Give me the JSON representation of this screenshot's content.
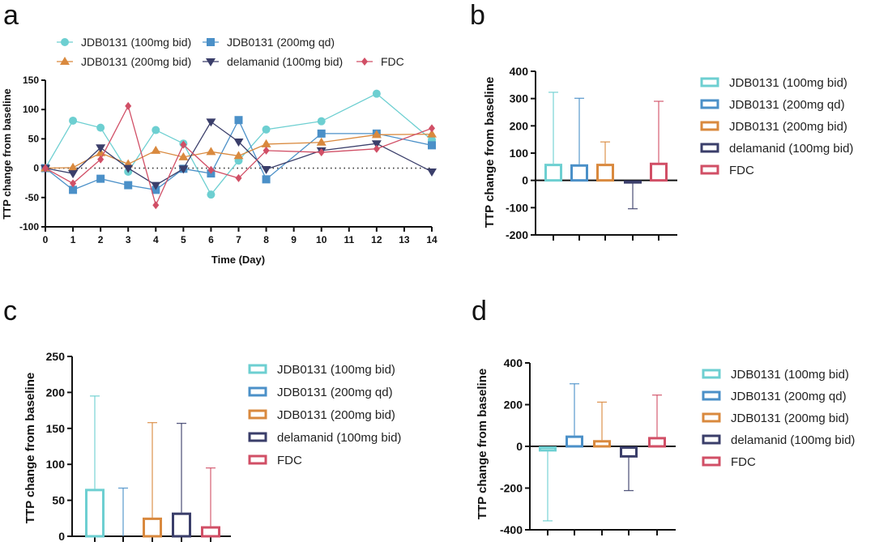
{
  "chart_data": [
    {
      "id": "a",
      "panel_label": "a",
      "type": "line",
      "title": "",
      "xlabel": "Time (Day)",
      "ylabel": "TTP change from baseline",
      "ylim": [
        -100,
        150
      ],
      "yticks": [
        -100,
        -50,
        0,
        50,
        100,
        150
      ],
      "xticks": [
        0,
        1,
        2,
        3,
        4,
        5,
        6,
        7,
        8,
        9,
        10,
        11,
        12,
        13,
        14
      ],
      "xlim": [
        0,
        14
      ],
      "reference_line": {
        "y": 0,
        "style": "dotted"
      },
      "legend_position": "top",
      "series": [
        {
          "name": "JDB0131 (100mg bid)",
          "color": "#6dcfd1",
          "marker": "circle",
          "x": [
            0,
            1,
            2,
            3,
            4,
            5,
            6,
            7,
            8,
            10,
            12,
            14
          ],
          "y": [
            0,
            81,
            69,
            -6,
            65,
            42,
            -45,
            13,
            66,
            80,
            127,
            48
          ]
        },
        {
          "name": "JDB0131 (200mg qd)",
          "color": "#4b90c8",
          "marker": "square",
          "x": [
            0,
            1,
            2,
            3,
            4,
            5,
            6,
            7,
            8,
            10,
            12,
            14
          ],
          "y": [
            0,
            -37,
            -18,
            -29,
            -37,
            -1,
            -9,
            82,
            -19,
            59,
            59,
            39
          ]
        },
        {
          "name": "JDB0131 (200mg bid)",
          "color": "#d9893e",
          "marker": "triangle-up",
          "x": [
            0,
            1,
            2,
            3,
            4,
            5,
            6,
            7,
            8,
            10,
            12,
            14
          ],
          "y": [
            0,
            1,
            26,
            7,
            30,
            19,
            28,
            21,
            41,
            44,
            57,
            58
          ]
        },
        {
          "name": "delamanid (100mg bid)",
          "color": "#3a3e6a",
          "marker": "triangle-down",
          "x": [
            0,
            1,
            2,
            3,
            4,
            5,
            6,
            7,
            8,
            10,
            12,
            14
          ],
          "y": [
            0,
            -9,
            35,
            0,
            -29,
            -1,
            79,
            45,
            -2,
            30,
            42,
            -6
          ]
        },
        {
          "name": "FDC",
          "color": "#d14f66",
          "marker": "diamond",
          "x": [
            0,
            1,
            2,
            3,
            4,
            5,
            6,
            7,
            8,
            10,
            12,
            14
          ],
          "y": [
            0,
            -26,
            15,
            106,
            -63,
            40,
            -3,
            -17,
            30,
            27,
            33,
            68
          ]
        }
      ]
    },
    {
      "id": "b",
      "panel_label": "b",
      "type": "bar",
      "xlabel": "",
      "ylabel": "TTP change from baseline",
      "ylim": [
        -200,
        400
      ],
      "yticks": [
        -200,
        -100,
        0,
        100,
        200,
        300,
        400
      ],
      "legend_position": "right",
      "categories": [
        "JDB0131 (100mg bid)",
        "JDB0131 (200mg qd)",
        "JDB0131 (200mg bid)",
        "delamanid (100mg bid)",
        "FDC"
      ],
      "values": [
        61,
        59,
        61,
        -5,
        65
      ],
      "error_ends": [
        323,
        301,
        141,
        -104,
        290
      ],
      "colors": [
        "#6dcfd1",
        "#4b90c8",
        "#d9893e",
        "#3a3e6a",
        "#d14f66"
      ]
    },
    {
      "id": "c",
      "panel_label": "c",
      "type": "bar",
      "xlabel": "",
      "ylabel": "TTP change from baseline",
      "ylim": [
        0,
        250
      ],
      "yticks": [
        0,
        50,
        100,
        150,
        200,
        250
      ],
      "legend_position": "right",
      "categories": [
        "JDB0131 (100mg bid)",
        "JDB0131 (200mg qd)",
        "JDB0131 (200mg bid)",
        "delamanid (100mg bid)",
        "FDC"
      ],
      "values": [
        66,
        0,
        26,
        33,
        14
      ],
      "error_ends": [
        195,
        67,
        158,
        157,
        95
      ],
      "colors": [
        "#6dcfd1",
        "#4b90c8",
        "#d9893e",
        "#3a3e6a",
        "#d14f66"
      ]
    },
    {
      "id": "d",
      "panel_label": "d",
      "type": "bar",
      "xlabel": "",
      "ylabel": "TTP change from baseline",
      "ylim": [
        -400,
        400
      ],
      "yticks": [
        -400,
        -200,
        0,
        200,
        400
      ],
      "legend_position": "right",
      "categories": [
        "JDB0131 (100mg bid)",
        "JDB0131 (200mg qd)",
        "JDB0131 (200mg bid)",
        "delamanid (100mg bid)",
        "FDC"
      ],
      "values": [
        -19,
        52,
        30,
        -48,
        45
      ],
      "error_ends": [
        -357,
        300,
        212,
        -212,
        246
      ],
      "colors": [
        "#6dcfd1",
        "#4b90c8",
        "#d9893e",
        "#3a3e6a",
        "#d14f66"
      ]
    }
  ]
}
